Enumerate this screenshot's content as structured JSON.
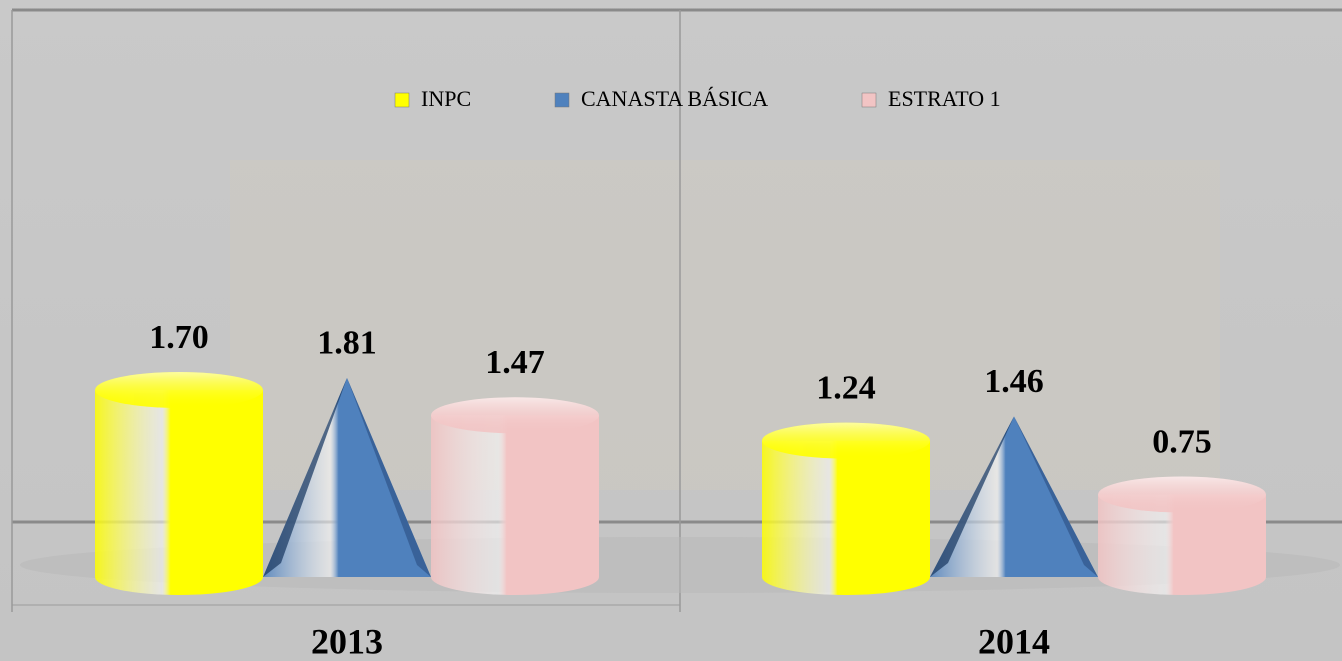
{
  "chart_data": {
    "type": "bar3d",
    "categories": [
      "2013",
      "2014"
    ],
    "series": [
      {
        "name": "INPC",
        "color": "#ffff00",
        "shape": "cylinder",
        "values": [
          1.7,
          1.24
        ],
        "value_labels": [
          "1.70",
          "1.24"
        ]
      },
      {
        "name": "CANASTA BÁSICA",
        "color": "#4f81bd",
        "shape": "pyramid",
        "values": [
          1.81,
          1.46
        ],
        "value_labels": [
          "1.81",
          "1.46"
        ]
      },
      {
        "name": "ESTRATO 1",
        "color": "#f2c4c4",
        "shape": "cylinder",
        "values": [
          1.47,
          0.75
        ],
        "value_labels": [
          "1.47",
          "0.75"
        ]
      }
    ],
    "legend": "top"
  }
}
